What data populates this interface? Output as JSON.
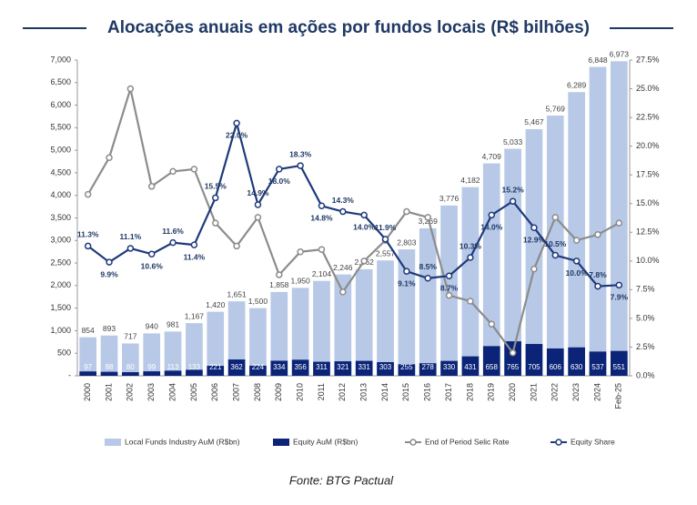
{
  "chart_data": {
    "type": "combo",
    "title": "Alocações anuais em ações por fundos locais (R$ bilhões)",
    "source": "Fonte: BTG Pactual",
    "categories": [
      "2000",
      "2001",
      "2002",
      "2003",
      "2004",
      "2005",
      "2006",
      "2007",
      "2008",
      "2009",
      "2010",
      "2011",
      "2012",
      "2013",
      "2014",
      "2015",
      "2016",
      "2017",
      "2018",
      "2019",
      "2020",
      "2021",
      "2022",
      "2023",
      "2024",
      "Feb-25"
    ],
    "ylim": [
      0,
      7000
    ],
    "yticks": [
      {
        "value": 0,
        "label": "-"
      },
      500,
      {
        "value": 1000,
        "label": "1,000"
      },
      {
        "value": 1500,
        "label": "1,500"
      },
      {
        "value": 2000,
        "label": "2,000"
      },
      {
        "value": 2500,
        "label": "2,500"
      },
      {
        "value": 3000,
        "label": "3,000"
      },
      {
        "value": 3500,
        "label": "3,500"
      },
      {
        "value": 4000,
        "label": "4,000"
      },
      {
        "value": 4500,
        "label": "4,500"
      },
      {
        "value": 5000,
        "label": "5,000"
      },
      {
        "value": 5500,
        "label": "5,500"
      },
      {
        "value": 6000,
        "label": "6,000"
      },
      {
        "value": 6500,
        "label": "6,500"
      },
      {
        "value": 7000,
        "label": "7,000"
      }
    ],
    "y2lim": [
      0,
      27.5
    ],
    "y2ticks": [
      {
        "value": 0,
        "label": "0.0%"
      },
      {
        "value": 2.5,
        "label": "2.5%"
      },
      {
        "value": 5,
        "label": "5.0%"
      },
      {
        "value": 7.5,
        "label": "7.5%"
      },
      {
        "value": 10,
        "label": "10.0%"
      },
      {
        "value": 12.5,
        "label": "12.5%"
      },
      {
        "value": 15,
        "label": "15.0%"
      },
      {
        "value": 17.5,
        "label": "17.5%"
      },
      {
        "value": 20,
        "label": "20.0%"
      },
      {
        "value": 22.5,
        "label": "22.5%"
      },
      {
        "value": 25,
        "label": "25.0%"
      },
      {
        "value": 27.5,
        "label": "27.5%"
      }
    ],
    "bar_mode": "overlay",
    "legend": "bottom",
    "series": [
      {
        "name": "Local Funds Industry AuM (R$bn)",
        "type": "bar",
        "color": "#b7c9e6",
        "values": [
          854,
          893,
          717,
          940,
          981,
          1167,
          1420,
          1651,
          1500,
          1858,
          1950,
          2104,
          2246,
          2362,
          2557,
          2803,
          3269,
          3776,
          4182,
          4709,
          5033,
          5467,
          5769,
          6289,
          6848,
          6973
        ],
        "value_labels": [
          "854",
          "893",
          "717",
          "940",
          "981",
          "1,167",
          "1,420",
          "1,651",
          "1,500",
          "1,858",
          "1,950",
          "2,104",
          "2,246",
          "2,362",
          "2,557",
          "2,803",
          "3,269",
          "3,776",
          "4,182",
          "4,709",
          "5,033",
          "5,467",
          "5,769",
          "6,289",
          "6,848",
          "6,973"
        ]
      },
      {
        "name": "Equity AuM (R$bn)",
        "type": "bar",
        "color": "#0c2478",
        "values": [
          97,
          88,
          80,
          99,
          113,
          133,
          221,
          362,
          224,
          334,
          356,
          311,
          321,
          331,
          303,
          255,
          278,
          330,
          431,
          658,
          765,
          705,
          606,
          630,
          537,
          551
        ]
      },
      {
        "name": "End of Period Selic Rate",
        "type": "line",
        "axis": "y2",
        "color": "#8c8c8c",
        "values": [
          15.8,
          19.0,
          25.0,
          16.5,
          17.8,
          18.0,
          13.3,
          11.3,
          13.8,
          8.8,
          10.8,
          11.0,
          7.3,
          10.0,
          11.8,
          14.3,
          13.8,
          7.0,
          6.5,
          4.5,
          2.0,
          9.3,
          13.8,
          11.8,
          12.3,
          13.3
        ]
      },
      {
        "name": "Equity Share",
        "type": "line",
        "axis": "y2",
        "color": "#1f3a7a",
        "values": [
          11.3,
          9.9,
          11.1,
          10.6,
          11.6,
          11.4,
          15.5,
          22.0,
          14.9,
          18.0,
          18.3,
          14.8,
          14.3,
          14.0,
          11.9,
          9.1,
          8.5,
          8.7,
          10.3,
          14.0,
          15.2,
          12.9,
          10.5,
          10.0,
          7.8,
          7.9
        ],
        "value_labels": [
          "11.3%",
          "9.9%",
          "11.1%",
          "10.6%",
          "11.6%",
          "11.4%",
          "15.5%",
          "22.0%",
          "14.9%",
          "18.0%",
          "18.3%",
          "14.8%",
          "14.3%",
          "14.0%",
          "11.9%",
          "9.1%",
          "8.5%",
          "8.7%",
          "10.3%",
          "14.0%",
          "15.2%",
          "12.9%",
          "10.5%",
          "10.0%",
          "7.8%",
          "7.9%"
        ]
      }
    ]
  }
}
